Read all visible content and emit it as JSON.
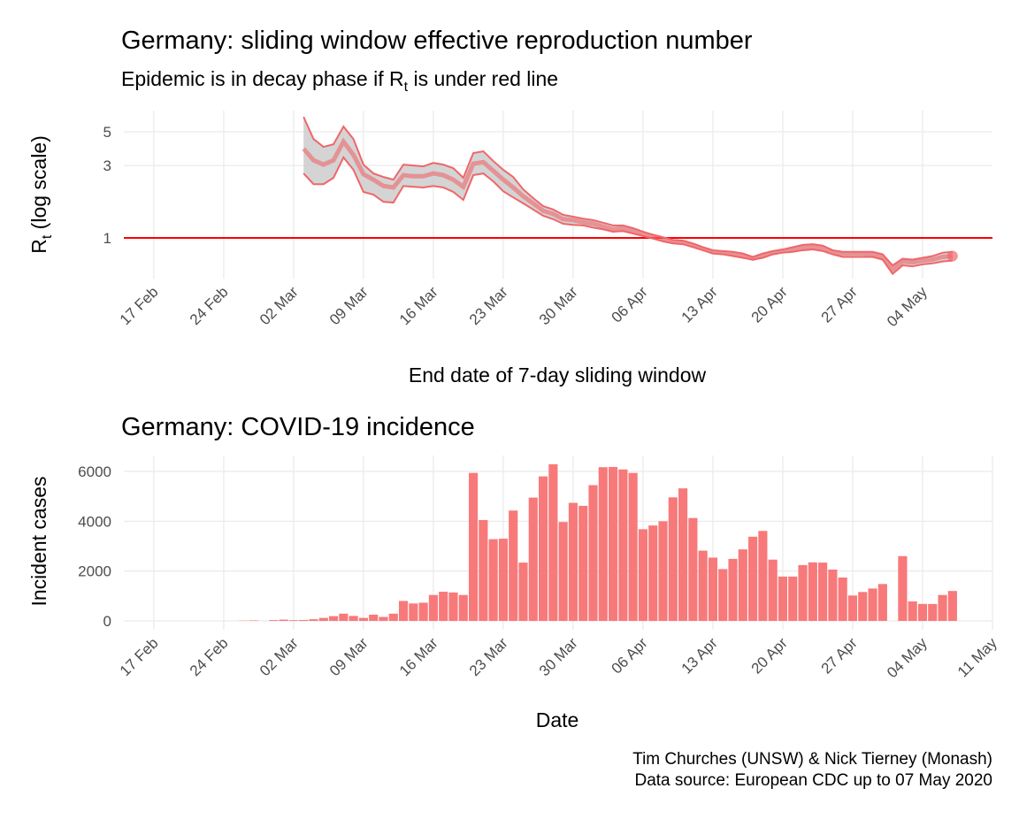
{
  "chart_data": [
    {
      "type": "band-line",
      "title": "Germany: sliding window effective reproduction number",
      "subtitle": [
        "Epidemic is in decay phase if R",
        "t",
        " is under red line"
      ],
      "ylabel": [
        "R",
        "t",
        " (log scale)"
      ],
      "xlabel": "End date of 7-day sliding window",
      "log_y": true,
      "grid": true,
      "hline": 1,
      "hline_color": "#ff0000",
      "color": "#f0666a",
      "band_color": "#cfcfcf",
      "x": [
        "03 Mar",
        "04 Mar",
        "05 Mar",
        "06 Mar",
        "07 Mar",
        "08 Mar",
        "09 Mar",
        "10 Mar",
        "11 Mar",
        "12 Mar",
        "13 Mar",
        "14 Mar",
        "15 Mar",
        "16 Mar",
        "17 Mar",
        "18 Mar",
        "19 Mar",
        "20 Mar",
        "21 Mar",
        "22 Mar",
        "23 Mar",
        "24 Mar",
        "25 Mar",
        "26 Mar",
        "27 Mar",
        "28 Mar",
        "29 Mar",
        "30 Mar",
        "31 Mar",
        "01 Apr",
        "02 Apr",
        "03 Apr",
        "04 Apr",
        "05 Apr",
        "06 Apr",
        "07 Apr",
        "08 Apr",
        "09 Apr",
        "10 Apr",
        "11 Apr",
        "12 Apr",
        "13 Apr",
        "14 Apr",
        "15 Apr",
        "16 Apr",
        "17 Apr",
        "18 Apr",
        "19 Apr",
        "20 Apr",
        "21 Apr",
        "22 Apr",
        "23 Apr",
        "24 Apr",
        "25 Apr",
        "26 Apr",
        "27 Apr",
        "28 Apr",
        "29 Apr",
        "30 Apr",
        "01 May",
        "02 May",
        "03 May",
        "04 May",
        "05 May",
        "06 May",
        "07 May"
      ],
      "values": [
        3.87,
        3.25,
        3.04,
        3.25,
        4.31,
        3.52,
        2.63,
        2.42,
        2.2,
        2.15,
        2.59,
        2.55,
        2.55,
        2.66,
        2.59,
        2.42,
        2.17,
        3.08,
        3.16,
        2.77,
        2.42,
        2.15,
        1.88,
        1.69,
        1.51,
        1.44,
        1.33,
        1.31,
        1.27,
        1.24,
        1.19,
        1.14,
        1.16,
        1.11,
        1.07,
        1.03,
        0.99,
        0.95,
        0.94,
        0.9,
        0.85,
        0.81,
        0.8,
        0.79,
        0.76,
        0.73,
        0.76,
        0.8,
        0.82,
        0.84,
        0.86,
        0.87,
        0.85,
        0.81,
        0.79,
        0.79,
        0.79,
        0.78,
        0.75,
        0.62,
        0.7,
        0.69,
        0.71,
        0.72,
        0.75,
        0.76
      ],
      "upper": [
        6.27,
        4.48,
        3.98,
        4.14,
        5.42,
        4.48,
        3.04,
        2.66,
        2.52,
        2.42,
        3.04,
        3.0,
        2.96,
        3.12,
        3.04,
        2.88,
        2.49,
        3.62,
        3.72,
        3.21,
        2.81,
        2.52,
        2.09,
        1.83,
        1.62,
        1.54,
        1.42,
        1.38,
        1.34,
        1.31,
        1.26,
        1.21,
        1.21,
        1.16,
        1.1,
        1.05,
        1.01,
        0.97,
        0.96,
        0.92,
        0.87,
        0.83,
        0.82,
        0.81,
        0.79,
        0.75,
        0.79,
        0.82,
        0.84,
        0.87,
        0.9,
        0.91,
        0.89,
        0.83,
        0.81,
        0.81,
        0.81,
        0.81,
        0.78,
        0.66,
        0.73,
        0.72,
        0.74,
        0.76,
        0.8,
        0.81
      ],
      "lower": [
        2.66,
        2.26,
        2.26,
        2.49,
        3.39,
        2.81,
        2.01,
        1.93,
        1.73,
        1.71,
        2.2,
        2.17,
        2.15,
        2.2,
        2.15,
        2.01,
        1.78,
        2.59,
        2.66,
        2.36,
        2.03,
        1.85,
        1.69,
        1.54,
        1.4,
        1.33,
        1.24,
        1.22,
        1.21,
        1.17,
        1.14,
        1.1,
        1.11,
        1.07,
        1.03,
        0.99,
        0.95,
        0.92,
        0.91,
        0.87,
        0.83,
        0.79,
        0.78,
        0.76,
        0.74,
        0.72,
        0.74,
        0.78,
        0.8,
        0.81,
        0.83,
        0.84,
        0.82,
        0.78,
        0.75,
        0.75,
        0.75,
        0.75,
        0.72,
        0.58,
        0.66,
        0.65,
        0.67,
        0.68,
        0.7,
        0.71
      ],
      "xlim": [
        "14 Feb",
        "11 May"
      ],
      "xticks": [
        "17 Feb",
        "24 Feb",
        "02 Mar",
        "09 Mar",
        "16 Mar",
        "23 Mar",
        "30 Mar",
        "06 Apr",
        "13 Apr",
        "20 Apr",
        "27 Apr",
        "04 May"
      ],
      "ylim": [
        0.54,
        6.9
      ],
      "yticks": [
        1,
        3,
        5
      ]
    },
    {
      "type": "bar",
      "title": "Germany: COVID-19 incidence",
      "ylabel": "Incident cases",
      "xlabel": "Date",
      "grid": true,
      "color": "#f8797a",
      "categories": [
        "24 Feb",
        "25 Feb",
        "26 Feb",
        "27 Feb",
        "28 Feb",
        "29 Feb",
        "01 Mar",
        "02 Mar",
        "03 Mar",
        "04 Mar",
        "05 Mar",
        "06 Mar",
        "07 Mar",
        "08 Mar",
        "09 Mar",
        "10 Mar",
        "11 Mar",
        "12 Mar",
        "13 Mar",
        "14 Mar",
        "15 Mar",
        "16 Mar",
        "17 Mar",
        "18 Mar",
        "19 Mar",
        "20 Mar",
        "21 Mar",
        "22 Mar",
        "23 Mar",
        "24 Mar",
        "25 Mar",
        "26 Mar",
        "27 Mar",
        "28 Mar",
        "29 Mar",
        "30 Mar",
        "31 Mar",
        "01 Apr",
        "02 Apr",
        "03 Apr",
        "04 Apr",
        "05 Apr",
        "06 Apr",
        "07 Apr",
        "08 Apr",
        "09 Apr",
        "10 Apr",
        "11 Apr",
        "12 Apr",
        "13 Apr",
        "14 Apr",
        "15 Apr",
        "16 Apr",
        "17 Apr",
        "18 Apr",
        "19 Apr",
        "20 Apr",
        "21 Apr",
        "22 Apr",
        "23 Apr",
        "24 Apr",
        "25 Apr",
        "26 Apr",
        "27 Apr",
        "28 Apr",
        "29 Apr",
        "30 Apr",
        "01 May",
        "02 May",
        "03 May",
        "04 May",
        "05 May",
        "06 May",
        "07 May"
      ],
      "values": [
        0,
        1,
        10,
        19,
        2,
        31,
        51,
        29,
        37,
        66,
        120,
        190,
        290,
        200,
        120,
        250,
        160,
        290,
        800,
        700,
        730,
        1040,
        1170,
        1140,
        1040,
        5940,
        4050,
        3280,
        3300,
        4430,
        2340,
        4950,
        5800,
        6290,
        3970,
        4740,
        4620,
        5450,
        6170,
        6180,
        6080,
        5940,
        3680,
        3830,
        4000,
        4960,
        5320,
        4130,
        2820,
        2540,
        2080,
        2490,
        2870,
        3380,
        3610,
        2460,
        1780,
        1780,
        2240,
        2350,
        2340,
        2060,
        1740,
        1020,
        1160,
        1300,
        1480,
        0,
        2600,
        780,
        680,
        680,
        1040,
        1200
      ],
      "xlim": [
        "14 Feb",
        "11 May"
      ],
      "xticks": [
        "17 Feb",
        "24 Feb",
        "02 Mar",
        "09 Mar",
        "16 Mar",
        "23 Mar",
        "30 Mar",
        "06 Apr",
        "13 Apr",
        "20 Apr",
        "27 Apr",
        "04 May",
        "11 May"
      ],
      "ylim": [
        -355,
        6640
      ],
      "yticks": [
        0,
        2000,
        4000,
        6000
      ],
      "caption": [
        "Tim Churches (UNSW) & Nick Tierney (Monash)",
        "Data source: European CDC up to 07 May 2020"
      ]
    }
  ]
}
